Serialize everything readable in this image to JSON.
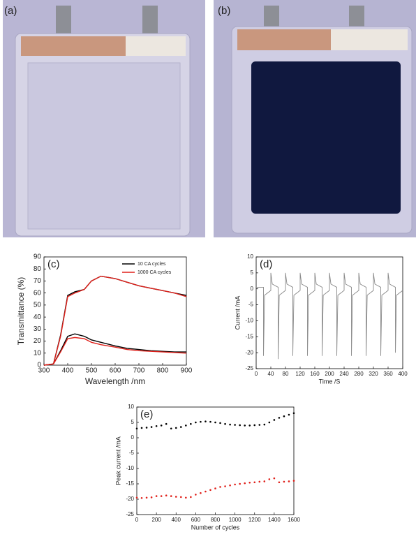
{
  "panels": [
    {
      "label": "(a)"
    },
    {
      "label": "(b)"
    }
  ],
  "chart_data": [
    {
      "type": "line",
      "panel": "(c)",
      "xlabel": "Wavelength /nm",
      "ylabel": "Transmittance (%)",
      "xlim": [
        300,
        900
      ],
      "ylim": [
        0,
        90
      ],
      "xticks": [
        300,
        400,
        500,
        600,
        700,
        800,
        900
      ],
      "yticks": [
        0,
        10,
        20,
        30,
        40,
        50,
        60,
        70,
        80,
        90
      ],
      "legend": "upper right",
      "x": [
        300,
        340,
        370,
        400,
        430,
        470,
        500,
        540,
        600,
        650,
        700,
        750,
        800,
        850,
        900
      ],
      "series": [
        {
          "name": "10 CA cycles",
          "color": "#000000",
          "values": [
            0,
            1,
            25,
            58,
            61,
            63,
            70,
            74,
            72,
            69,
            66,
            64,
            62,
            60,
            58
          ],
          "values_colored": [
            0,
            1,
            12,
            24,
            26,
            24,
            21,
            19,
            16,
            14,
            13,
            12,
            11.5,
            11,
            11
          ]
        },
        {
          "name": "1000 CA cycles",
          "color": "#e0201a",
          "values": [
            0,
            1,
            24,
            57,
            60,
            63,
            70,
            74,
            72,
            69,
            66,
            64,
            62,
            60,
            57
          ],
          "values_colored": [
            0,
            1,
            11,
            22,
            23,
            22,
            19,
            17,
            15,
            13,
            12,
            11.5,
            11,
            10.5,
            10
          ]
        }
      ]
    },
    {
      "type": "line",
      "panel": "(d)",
      "xlabel": "Time /S",
      "ylabel": "Current /mA",
      "xlim": [
        0,
        400
      ],
      "ylim": [
        -25,
        10
      ],
      "xticks": [
        0,
        40,
        80,
        120,
        160,
        200,
        240,
        280,
        320,
        360,
        400
      ],
      "yticks": [
        -25,
        -20,
        -15,
        -10,
        -5,
        0,
        5,
        10
      ],
      "x": [
        0,
        20,
        20,
        23,
        40,
        40,
        44,
        60,
        60,
        63,
        80,
        80,
        84,
        100,
        100,
        103,
        120,
        120,
        124,
        140,
        140,
        143,
        160,
        160,
        164,
        180,
        180,
        183,
        200,
        200,
        204,
        220,
        220,
        223,
        240,
        240,
        244,
        260,
        260,
        263,
        280,
        280,
        284,
        300,
        300,
        303,
        320,
        320,
        324,
        340,
        340,
        343,
        360,
        360,
        364,
        380,
        380,
        383,
        400
      ],
      "series": [
        {
          "color": "#8a8a8a",
          "values": [
            0.5,
            0.5,
            -21,
            -2,
            -0.5,
            5,
            1.5,
            0.5,
            -22,
            -2,
            -0.5,
            5,
            1.5,
            0.5,
            -21,
            -2,
            -0.5,
            5,
            1.5,
            0.5,
            -21,
            -2,
            -0.5,
            5,
            1.5,
            0.5,
            -21,
            -2,
            -0.5,
            5,
            1.5,
            0.5,
            -21,
            -2,
            -0.5,
            5,
            1.5,
            0.5,
            -21,
            -2,
            -0.5,
            5,
            1.5,
            0.5,
            -21,
            -2,
            -0.5,
            5,
            1.5,
            0.5,
            -21,
            -2,
            -0.5,
            5,
            1.5,
            0.5,
            -20,
            -2,
            -0.5
          ]
        }
      ]
    },
    {
      "type": "scatter",
      "panel": "(e)",
      "xlabel": "Number of cycles",
      "ylabel": "Peak current /mA",
      "xlim": [
        0,
        1600
      ],
      "ylim": [
        -25,
        10
      ],
      "xticks": [
        0,
        200,
        400,
        600,
        800,
        1000,
        1200,
        1400,
        1600
      ],
      "yticks": [
        -25,
        -20,
        -15,
        -10,
        -5,
        0,
        5,
        10
      ],
      "x": [
        0,
        50,
        100,
        150,
        200,
        250,
        300,
        350,
        400,
        450,
        500,
        550,
        600,
        650,
        700,
        750,
        800,
        850,
        900,
        950,
        1000,
        1050,
        1100,
        1150,
        1200,
        1250,
        1300,
        1350,
        1400,
        1450,
        1500,
        1550,
        1600
      ],
      "series": [
        {
          "color": "#000000",
          "values": [
            3,
            3.2,
            3.3,
            3.5,
            3.8,
            4,
            4.5,
            3,
            3.2,
            3.5,
            4,
            4.5,
            5,
            5.2,
            5.3,
            5.2,
            5,
            4.8,
            4.5,
            4.3,
            4.2,
            4.1,
            4,
            4,
            4.1,
            4.2,
            4.3,
            5,
            5.8,
            6.5,
            7,
            7.5,
            8
          ]
        },
        {
          "color": "#e0201a",
          "values": [
            -19.5,
            -19.6,
            -19.5,
            -19.4,
            -19,
            -19,
            -18.8,
            -19,
            -19.2,
            -19.3,
            -19.5,
            -19.3,
            -18.5,
            -18,
            -17.5,
            -17,
            -16.5,
            -16,
            -15.8,
            -15.5,
            -15.2,
            -15,
            -14.8,
            -14.6,
            -14.5,
            -14.3,
            -14.2,
            -13.5,
            -13.2,
            -14.5,
            -14.3,
            -14.2,
            -14
          ]
        }
      ]
    }
  ]
}
